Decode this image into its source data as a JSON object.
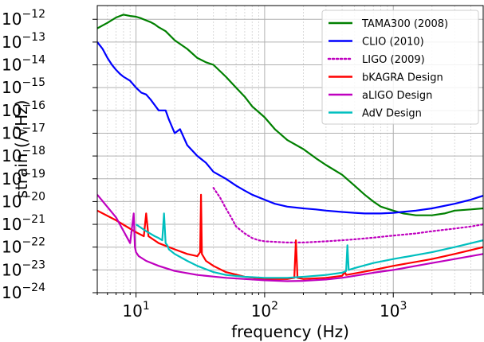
{
  "chart_data": {
    "type": "line",
    "xlabel": "frequency (Hz)",
    "ylabel": "strain (/√Hz)",
    "x_scale": "log",
    "y_scale": "log",
    "xlim": [
      5,
      5000
    ],
    "ylim": [
      1e-24,
      4e-12
    ],
    "grid": true,
    "legend_placement": "top-right",
    "x_ticks": [
      {
        "value": 10,
        "base": "10",
        "exp": "1"
      },
      {
        "value": 100,
        "base": "10",
        "exp": "2"
      },
      {
        "value": 1000,
        "base": "10",
        "exp": "3"
      }
    ],
    "y_ticks": [
      {
        "value": 1e-12,
        "base": "10",
        "exp": "−12"
      },
      {
        "value": 1e-13,
        "base": "10",
        "exp": "−13"
      },
      {
        "value": 1e-14,
        "base": "10",
        "exp": "−14"
      },
      {
        "value": 1e-15,
        "base": "10",
        "exp": "−15"
      },
      {
        "value": 1e-16,
        "base": "10",
        "exp": "−16"
      },
      {
        "value": 1e-17,
        "base": "10",
        "exp": "−17"
      },
      {
        "value": 1e-18,
        "base": "10",
        "exp": "−18"
      },
      {
        "value": 1e-19,
        "base": "10",
        "exp": "−19"
      },
      {
        "value": 1e-20,
        "base": "10",
        "exp": "−20"
      },
      {
        "value": 1e-21,
        "base": "10",
        "exp": "−21"
      },
      {
        "value": 1e-22,
        "base": "10",
        "exp": "−22"
      },
      {
        "value": 1e-23,
        "base": "10",
        "exp": "−23"
      },
      {
        "value": 1e-24,
        "base": "10",
        "exp": "−24"
      }
    ],
    "series": [
      {
        "name": "TAMA300 (2008)",
        "color": "#008000",
        "style": "solid",
        "x": [
          5,
          6,
          7,
          8,
          9,
          10,
          11,
          12,
          13,
          14,
          15,
          17,
          20,
          25,
          30,
          35,
          40,
          50,
          60,
          70,
          80,
          100,
          120,
          150,
          200,
          250,
          300,
          400,
          500,
          600,
          700,
          800,
          1000,
          1200,
          1500,
          2000,
          2500,
          3000,
          4000,
          5000
        ],
        "y": [
          4e-13,
          7e-13,
          1.2e-12,
          1.6e-12,
          1.4e-12,
          1.3e-12,
          1.1e-12,
          9e-13,
          7.5e-13,
          6e-13,
          4.5e-13,
          3e-13,
          1.2e-13,
          5e-14,
          2e-14,
          1.3e-14,
          1e-14,
          3e-15,
          1e-15,
          4e-16,
          1.5e-16,
          5e-17,
          1.5e-17,
          5e-18,
          2e-18,
          8e-19,
          4e-19,
          1.5e-19,
          5e-20,
          2e-20,
          1e-20,
          6e-21,
          4e-21,
          3e-21,
          2.5e-21,
          2.5e-21,
          3e-21,
          4e-21,
          4.5e-21,
          5e-21
        ]
      },
      {
        "name": "CLIO (2010)",
        "color": "#0000ff",
        "style": "solid",
        "x": [
          5,
          5.5,
          6,
          6.5,
          7,
          7.5,
          8,
          9,
          10,
          11,
          12,
          13,
          15,
          17,
          18,
          20,
          22,
          25,
          30,
          35,
          40,
          50,
          60,
          70,
          80,
          100,
          120,
          150,
          200,
          250,
          300,
          400,
          500,
          600,
          800,
          1000,
          1500,
          2000,
          3000,
          4000,
          5000
        ],
        "y": [
          1e-13,
          5e-14,
          2e-14,
          1e-14,
          6e-15,
          4e-15,
          3e-15,
          2e-15,
          1e-15,
          6e-16,
          5e-16,
          3e-16,
          1e-16,
          1e-16,
          4e-17,
          1e-17,
          1.5e-17,
          3e-18,
          1e-18,
          5e-19,
          2e-19,
          1e-19,
          5e-20,
          3e-20,
          2e-20,
          1.2e-20,
          8e-21,
          6e-21,
          5e-21,
          4.5e-21,
          4e-21,
          3.5e-21,
          3.2e-21,
          3e-21,
          3e-21,
          3.2e-21,
          4e-21,
          5e-21,
          8e-21,
          1.2e-20,
          1.8e-20
        ]
      },
      {
        "name": "LIGO (2009)",
        "color": "#bf00bf",
        "style": "dotted",
        "x": [
          40,
          45,
          50,
          55,
          60,
          70,
          80,
          90,
          100,
          120,
          150,
          200,
          250,
          300,
          400,
          500,
          700,
          1000,
          1500,
          2000,
          3000,
          4000,
          5000
        ],
        "y": [
          4e-20,
          1.5e-20,
          5e-21,
          2e-21,
          8e-22,
          4e-22,
          2.5e-22,
          2e-22,
          1.8e-22,
          1.7e-22,
          1.6e-22,
          1.6e-22,
          1.7e-22,
          1.8e-22,
          2e-22,
          2.2e-22,
          2.6e-22,
          3.2e-22,
          4e-22,
          5e-22,
          6.5e-22,
          8e-22,
          1e-21
        ]
      },
      {
        "name": "bKAGRA Design",
        "color": "#ff0000",
        "style": "solid",
        "x": [
          5,
          7,
          10,
          11.5,
          12,
          12.5,
          15,
          20,
          25,
          30,
          31.5,
          32,
          32.5,
          35,
          40,
          50,
          70,
          100,
          150,
          170,
          175,
          180,
          200,
          300,
          400,
          420,
          430,
          500,
          700,
          1000,
          2000,
          3000,
          5000
        ],
        "y": [
          4e-21,
          1.5e-21,
          4.5e-22,
          3e-22,
          3e-21,
          3e-22,
          1.5e-22,
          8e-23,
          5e-23,
          4e-23,
          6e-23,
          2e-20,
          5e-23,
          2.5e-23,
          1.5e-23,
          8e-24,
          5e-24,
          4e-24,
          4e-24,
          4.5e-24,
          2e-22,
          4.5e-24,
          4e-24,
          4.5e-24,
          5.5e-24,
          8e-24,
          6e-24,
          7e-24,
          1e-23,
          1.5e-23,
          3e-23,
          5e-23,
          1e-22
        ]
      },
      {
        "name": "aLIGO Design",
        "color": "#bf00bf",
        "style": "solid",
        "x": [
          5,
          7,
          9,
          9.6,
          9.8,
          10,
          10.5,
          12,
          15,
          20,
          30,
          50,
          70,
          100,
          150,
          200,
          300,
          400,
          500,
          700,
          1000,
          2000,
          3000,
          5000
        ],
        "y": [
          2e-20,
          2e-21,
          1.5e-22,
          3e-21,
          1e-22,
          6e-23,
          4e-23,
          2.5e-23,
          1.5e-23,
          9e-24,
          6e-24,
          4.5e-24,
          4e-24,
          3.5e-24,
          3.2e-24,
          3.3e-24,
          3.8e-24,
          4.5e-24,
          5.5e-24,
          7.5e-24,
          1e-23,
          2e-23,
          3e-23,
          5e-23
        ]
      },
      {
        "name": "AdV Design",
        "color": "#00bfbf",
        "style": "solid",
        "x": [
          10,
          12,
          14,
          15,
          16,
          16.5,
          17,
          17.5,
          18,
          20,
          25,
          30,
          40,
          50,
          70,
          100,
          150,
          200,
          300,
          400,
          430,
          440,
          450,
          500,
          700,
          1000,
          2000,
          3000,
          5000
        ],
        "y": [
          1e-21,
          5e-22,
          3e-22,
          2.5e-22,
          2e-22,
          3e-21,
          1.5e-22,
          1.2e-22,
          8e-23,
          5e-23,
          2.5e-23,
          1.5e-23,
          8e-24,
          6e-24,
          5e-24,
          4.5e-24,
          4.5e-24,
          5e-24,
          6e-24,
          7.5e-24,
          9e-24,
          1.2e-22,
          1e-23,
          1.2e-23,
          2e-23,
          3e-23,
          6e-23,
          1e-22,
          2e-22
        ]
      }
    ]
  }
}
